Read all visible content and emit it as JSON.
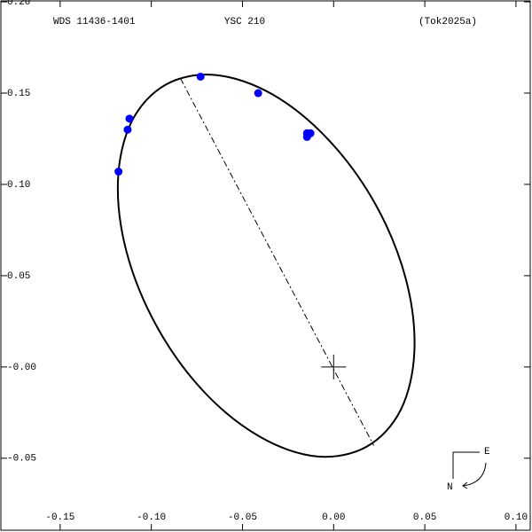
{
  "chart_data": {
    "type": "scatter",
    "title": "YSC 210",
    "left_label": "WDS 11436-1401",
    "right_label": "(Tok2025a)",
    "xlim": [
      -0.183,
      0.1088
    ],
    "ylim": [
      -0.0904,
      0.201
    ],
    "xticks": [
      -0.15,
      {
        "value": -0.1,
        "label": "-0.10"
      },
      -0.05,
      {
        "value": 0,
        "label": "0.00"
      },
      0.05,
      {
        "value": 0.1,
        "label": "0.10"
      }
    ],
    "yticks": [
      -0.05,
      {
        "value": 0,
        "label": "-0.00"
      },
      0.05,
      {
        "value": 0.1,
        "label": "0.10"
      },
      0.15,
      {
        "value": 0.2,
        "label": "0.20"
      }
    ],
    "orbit": {
      "color": "#000000",
      "x": [
        0.018,
        -0.0092,
        -0.0405,
        -0.0714,
        -0.097,
        -0.1135,
        -0.1183,
        -0.1108,
        -0.092,
        -0.0648,
        -0.0334,
        -0.0026,
        0.0231,
        0.0396,
        0.0443,
        0.0368
      ],
      "y": [
        -0.0437,
        -0.049,
        -0.0382,
        -0.0133,
        0.0222,
        0.0627,
        0.1021,
        0.1344,
        0.1547,
        0.1599,
        0.1492,
        0.1242,
        0.0888,
        0.0482,
        0.0089,
        -0.0235
      ]
    },
    "line_of_apsides": {
      "x": [
        -0.084,
        0.022
      ],
      "y": [
        0.158,
        -0.043
      ]
    },
    "primary": {
      "x": 0,
      "y": 0
    },
    "observations": {
      "color": "#0000ff",
      "x": [
        -0.073,
        -0.0414,
        -0.0127,
        -0.0146,
        -0.0146,
        -0.112,
        -0.113,
        -0.118
      ],
      "y": [
        0.159,
        0.15,
        0.128,
        0.128,
        0.126,
        0.136,
        0.13,
        0.107
      ]
    },
    "compass": {
      "east": "E",
      "north": "N"
    }
  }
}
